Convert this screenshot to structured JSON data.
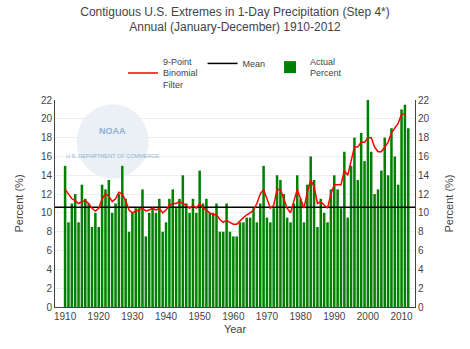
{
  "chart_data": {
    "type": "bar",
    "title": "Contiguous U.S. Extremes in 1-Day Precipitation (Step 4*)",
    "subtitle": "Annual (January-December) 1910-2012",
    "x_label": "Year",
    "y_label": "Percent (%)",
    "y2_label": "Percent (%)",
    "x": [
      1910,
      1911,
      1912,
      1913,
      1914,
      1915,
      1916,
      1917,
      1918,
      1919,
      1920,
      1921,
      1922,
      1923,
      1924,
      1925,
      1926,
      1927,
      1928,
      1929,
      1930,
      1931,
      1932,
      1933,
      1934,
      1935,
      1936,
      1937,
      1938,
      1939,
      1940,
      1941,
      1942,
      1943,
      1944,
      1945,
      1946,
      1947,
      1948,
      1949,
      1950,
      1951,
      1952,
      1953,
      1954,
      1955,
      1956,
      1957,
      1958,
      1959,
      1960,
      1961,
      1962,
      1963,
      1964,
      1965,
      1966,
      1967,
      1968,
      1969,
      1970,
      1971,
      1972,
      1973,
      1974,
      1975,
      1976,
      1977,
      1978,
      1979,
      1980,
      1981,
      1982,
      1983,
      1984,
      1985,
      1986,
      1987,
      1988,
      1989,
      1990,
      1991,
      1992,
      1993,
      1994,
      1995,
      1996,
      1997,
      1998,
      1999,
      2000,
      2001,
      2002,
      2003,
      2004,
      2005,
      2006,
      2007,
      2008,
      2009,
      2010,
      2011,
      2012
    ],
    "series": [
      {
        "name": "9-Point\nBinomial\nFilter",
        "type": "line",
        "color": "#ff0000",
        "axis": "y2",
        "values": [
          12.5,
          12.0,
          11.5,
          11.3,
          11.0,
          11.2,
          11.3,
          11.0,
          10.5,
          10.2,
          10.5,
          11.5,
          12.0,
          11.8,
          11.2,
          11.5,
          12.2,
          12.0,
          11.3,
          10.3,
          10.0,
          10.2,
          10.3,
          10.5,
          10.2,
          10.3,
          10.5,
          10.3,
          10.5,
          10.0,
          10.3,
          10.8,
          11.0,
          11.0,
          11.2,
          11.0,
          10.8,
          10.5,
          10.8,
          10.5,
          11.0,
          10.5,
          10.3,
          10.0,
          9.8,
          9.8,
          9.3,
          9.0,
          9.2,
          9.0,
          8.8,
          8.8,
          9.2,
          9.5,
          9.8,
          10.0,
          10.3,
          11.0,
          12.0,
          12.5,
          11.5,
          10.5,
          10.8,
          12.5,
          12.5,
          11.5,
          10.5,
          10.0,
          11.2,
          12.5,
          11.5,
          10.5,
          12.2,
          13.5,
          12.8,
          11.0,
          11.2,
          10.8,
          10.5,
          12.0,
          13.0,
          13.0,
          13.0,
          14.5,
          14.0,
          15.5,
          17.0,
          17.0,
          17.5,
          17.5,
          18.0,
          18.0,
          17.0,
          16.5,
          16.5,
          17.0,
          17.5,
          18.5,
          19.0,
          19.5,
          20.5,
          20.5,
          null
        ]
      },
      {
        "name": "Mean",
        "type": "line",
        "color": "#000000",
        "x": [
          1907,
          2014
        ],
        "values": [
          10.6,
          10.6
        ]
      },
      {
        "name": "Actual\nPercent",
        "type": "bar",
        "color": "#008000",
        "values": [
          15.0,
          9.0,
          11.0,
          12.0,
          9.0,
          13.0,
          11.5,
          11.0,
          8.5,
          10.0,
          8.5,
          13.0,
          12.5,
          13.5,
          10.0,
          11.0,
          12.0,
          15.0,
          11.5,
          8.0,
          10.0,
          10.5,
          10.5,
          12.5,
          7.5,
          10.0,
          10.5,
          10.0,
          11.5,
          8.0,
          9.0,
          11.5,
          12.5,
          10.5,
          11.5,
          14.0,
          11.0,
          10.0,
          11.5,
          10.0,
          14.5,
          11.0,
          11.5,
          10.0,
          10.0,
          11.0,
          8.0,
          8.0,
          11.0,
          8.0,
          7.5,
          7.5,
          9.0,
          9.0,
          9.5,
          9.5,
          10.5,
          9.0,
          11.0,
          15.0,
          9.5,
          9.0,
          10.5,
          14.0,
          13.5,
          12.0,
          9.5,
          9.0,
          11.0,
          14.0,
          11.5,
          9.0,
          13.0,
          16.0,
          13.5,
          8.5,
          11.5,
          10.0,
          9.0,
          12.5,
          14.0,
          12.5,
          10.5,
          16.5,
          9.5,
          15.0,
          18.0,
          13.5,
          18.5,
          15.5,
          22.0,
          16.5,
          12.0,
          12.5,
          14.5,
          18.0,
          14.0,
          19.0,
          16.0,
          13.0,
          21.0,
          21.5,
          19.0
        ]
      }
    ],
    "xlim": [
      1907,
      2014
    ],
    "xticks": [
      1910,
      1920,
      1930,
      1940,
      1950,
      1960,
      1970,
      1980,
      1990,
      2000,
      2010
    ],
    "ylim": [
      0,
      22
    ],
    "yticks": [
      0,
      2,
      4,
      6,
      8,
      10,
      12,
      14,
      16,
      18,
      20,
      22
    ],
    "y2lim": [
      0,
      22
    ],
    "y2ticks": [
      0,
      2,
      4,
      6,
      8,
      10,
      12,
      14,
      16,
      18,
      20,
      22
    ],
    "grid": true,
    "legend": "top",
    "annotations": [
      "NOAA",
      "U.S. DEPARTMENT OF COMMERCE"
    ]
  }
}
